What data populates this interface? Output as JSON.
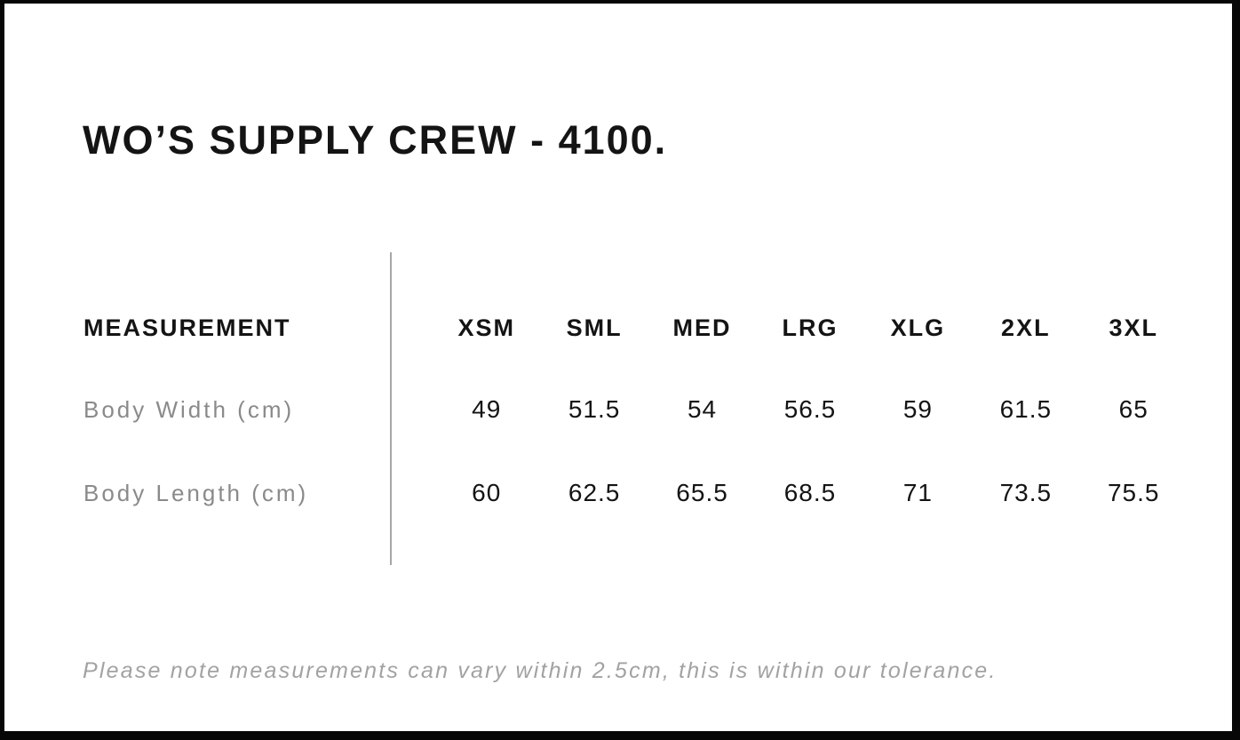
{
  "title": "WO’S SUPPLY CREW - 4100.",
  "table": {
    "measurement_header": "MEASUREMENT",
    "size_headers": [
      "XSM",
      "SML",
      "MED",
      "LRG",
      "XLG",
      "2XL",
      "3XL"
    ],
    "rows": [
      {
        "label": "Body Width (cm)",
        "values": [
          "49",
          "51.5",
          "54",
          "56.5",
          "59",
          "61.5",
          "65"
        ]
      },
      {
        "label": "Body Length (cm)",
        "values": [
          "60",
          "62.5",
          "65.5",
          "68.5",
          "71",
          "73.5",
          "75.5"
        ]
      }
    ]
  },
  "note": "Please note measurements can vary within 2.5cm, this is within our tolerance.",
  "colors": {
    "ink": "#141414",
    "frame": "#070707",
    "label-gray": "#8a8a8a",
    "note-gray": "#a2a2a2",
    "divider": "#a6a6a6"
  },
  "chart_data": {
    "type": "table",
    "title": "WO’S SUPPLY CREW - 4100.",
    "columns": [
      "MEASUREMENT",
      "XSM",
      "SML",
      "MED",
      "LRG",
      "XLG",
      "2XL",
      "3XL"
    ],
    "rows": [
      [
        "Body Width (cm)",
        49,
        51.5,
        54,
        56.5,
        59,
        61.5,
        65
      ],
      [
        "Body Length (cm)",
        60,
        62.5,
        65.5,
        68.5,
        71,
        73.5,
        75.5
      ]
    ],
    "footnote": "Please note measurements can vary within 2.5cm, this is within our tolerance.",
    "layout": {
      "divider_between_labels_and_values": true,
      "grid": "off"
    }
  }
}
